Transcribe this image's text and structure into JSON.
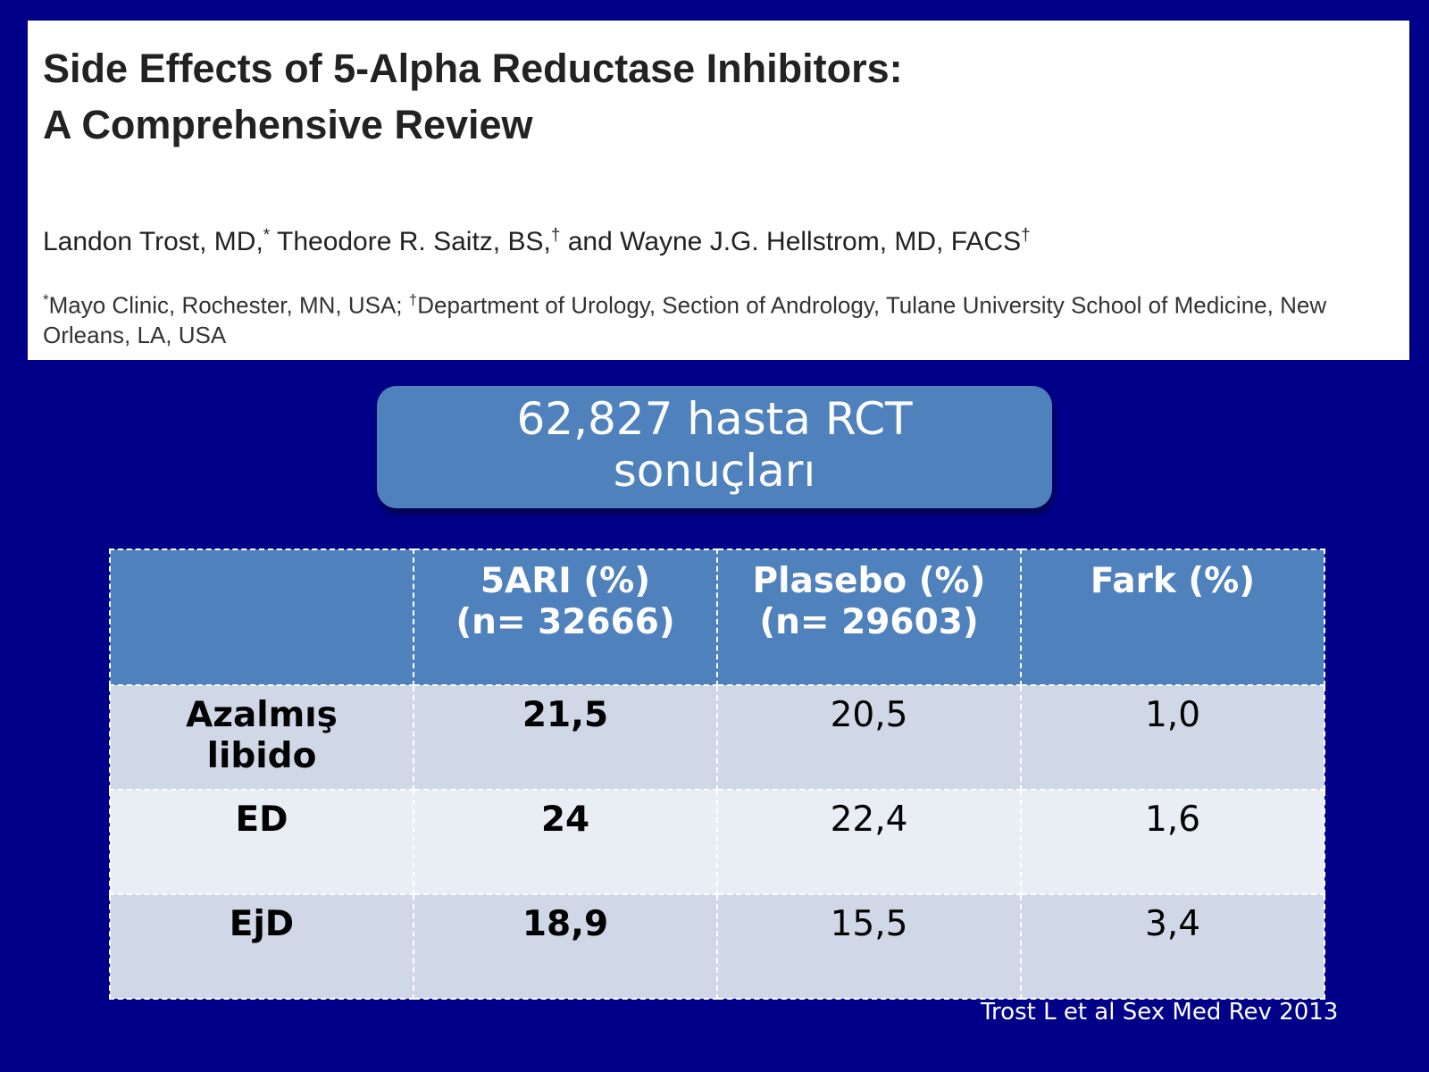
{
  "paper": {
    "title": "Side Effects of 5-Alpha Reductase Inhibitors:\nA Comprehensive Review",
    "authors": {
      "author1": "Landon Trost, MD,",
      "mark1": "*",
      "author2": " Theodore R. Saitz, BS,",
      "mark2": "†",
      "author3": " and Wayne J.G. Hellstrom, MD, FACS",
      "mark3": "†"
    },
    "affiliation": {
      "mark1": "*",
      "text1": "Mayo Clinic, Rochester, MN, USA; ",
      "mark2": "†",
      "text2": "Department of Urology, Section of Andrology, Tulane University School of Medicine, New Orleans, LA, USA"
    }
  },
  "callout": {
    "text": "62,827 hasta RCT\nsonuçları"
  },
  "table": {
    "headers": [
      "",
      "5ARI (%)\n(n= 32666)",
      "Plasebo (%)\n(n= 29603)",
      "Fark (%)"
    ],
    "rows": [
      {
        "label": "Azalmış\nlibido",
        "ari": "21,5",
        "placebo": "20,5",
        "diff": "1,0"
      },
      {
        "label": "ED",
        "ari": "24",
        "placebo": "22,4",
        "diff": "1,6"
      },
      {
        "label": "EjD",
        "ari": "18,9",
        "placebo": "15,5",
        "diff": "3,4"
      }
    ]
  },
  "citation": "Trost L et al Sex Med Rev 2013",
  "colors": {
    "background": "#000088",
    "accent": "#4f81bd",
    "row_odd": "#d0d8e8",
    "row_even": "#e9edf4"
  }
}
